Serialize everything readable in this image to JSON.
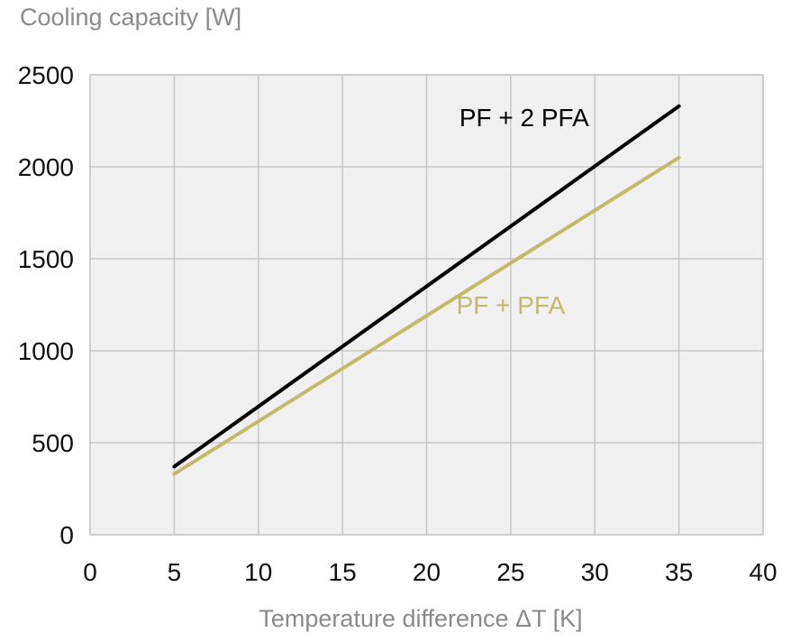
{
  "chart_data": {
    "type": "line",
    "title": "",
    "xlabel": "Temperature difference ΔT [K]",
    "ylabel": "Cooling capacity [W]",
    "xlim": [
      0,
      40
    ],
    "ylim": [
      0,
      2500
    ],
    "x_ticks": [
      0,
      5,
      10,
      15,
      20,
      25,
      30,
      35,
      40
    ],
    "x_tick_labels": [
      "0",
      "5",
      "10",
      "15",
      "20",
      "25",
      "30",
      "35",
      "40"
    ],
    "y_ticks": [
      0,
      500,
      1000,
      1500,
      2000,
      2500
    ],
    "y_tick_labels": [
      "0",
      "500",
      "1000",
      "1500",
      "2000",
      "2500"
    ],
    "grid": true,
    "legend": "inline labels",
    "series": [
      {
        "name": "PF + 2 PFA",
        "color": "#000000",
        "x": [
          5,
          35
        ],
        "y": [
          370,
          2330
        ]
      },
      {
        "name": "PF + PFA",
        "color": "#c4b96a",
        "x": [
          5,
          35
        ],
        "y": [
          330,
          2050
        ]
      }
    ],
    "colors": {
      "plot_background": "#f0f0f0",
      "grid": "#c8c8c8",
      "axis_label": "#8a8a8a",
      "tick_label": "#111111"
    }
  }
}
